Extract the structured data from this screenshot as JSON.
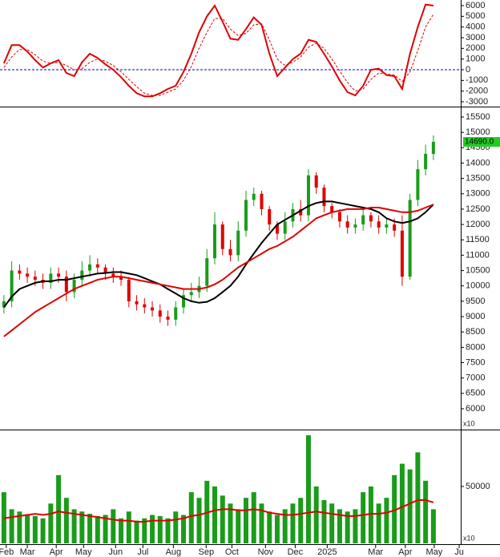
{
  "chart_data": [
    {
      "type": "line",
      "x": [
        0,
        1,
        2,
        3,
        4,
        5,
        6,
        7,
        8,
        9,
        10,
        11,
        12,
        13,
        14,
        15,
        16,
        17,
        18,
        19,
        20,
        21,
        22,
        23,
        24,
        25,
        26,
        27,
        28,
        29,
        30,
        31,
        32,
        33,
        34,
        35,
        36,
        37,
        38,
        39,
        40,
        41,
        42,
        43,
        44,
        45,
        46,
        47,
        48,
        49,
        50,
        51,
        52,
        53,
        54,
        55
      ],
      "xlim": [
        -0.5,
        58.5
      ],
      "ylim": [
        -3450,
        6525
      ],
      "yticks": [
        -3000,
        -2000,
        -1000,
        0,
        1000,
        2000,
        3000,
        4000,
        5000,
        6000
      ],
      "hline": 0,
      "hline_color": "#0000cc",
      "series": [
        {
          "color": "#e00000",
          "style": "solid",
          "values": [
            600,
            2300,
            2300,
            1700,
            900,
            200,
            600,
            900,
            -300,
            -600,
            700,
            1500,
            1100,
            500,
            0,
            -700,
            -1500,
            -2200,
            -2500,
            -2500,
            -2200,
            -1800,
            -1500,
            -200,
            1500,
            3500,
            5000,
            6000,
            4500,
            2900,
            2800,
            3800,
            4900,
            4200,
            1500,
            -600,
            200,
            1000,
            1500,
            2800,
            2600,
            1500,
            300,
            -1000,
            -2100,
            -2400,
            -1500,
            0,
            100,
            -500,
            -600,
            -1800,
            1500,
            4000,
            6100,
            6000
          ]
        },
        {
          "color": "#e00000",
          "style": "dashed",
          "values": [
            200,
            1200,
            1900,
            1900,
            1400,
            800,
            600,
            700,
            400,
            0,
            100,
            700,
            1000,
            800,
            400,
            -200,
            -900,
            -1600,
            -2200,
            -2400,
            -2400,
            -2100,
            -1800,
            -1000,
            300,
            2000,
            3500,
            4800,
            4800,
            3800,
            3200,
            3400,
            4200,
            4300,
            2800,
            1000,
            400,
            700,
            1200,
            2100,
            2500,
            2000,
            1000,
            -100,
            -1200,
            -2000,
            -1800,
            -900,
            -300,
            -400,
            -500,
            -1100,
            -200,
            1800,
            4000,
            5200
          ]
        }
      ]
    },
    {
      "type": "candlestick",
      "x": [
        0,
        1,
        2,
        3,
        4,
        5,
        6,
        7,
        8,
        9,
        10,
        11,
        12,
        13,
        14,
        15,
        16,
        17,
        18,
        19,
        20,
        21,
        22,
        23,
        24,
        25,
        26,
        27,
        28,
        29,
        30,
        31,
        32,
        33,
        34,
        35,
        36,
        37,
        38,
        39,
        40,
        41,
        42,
        43,
        44,
        45,
        46,
        47,
        48,
        49,
        50,
        51,
        52,
        53,
        54,
        55
      ],
      "xlim": [
        -0.5,
        58.5
      ],
      "ylim": [
        5347,
        15787
      ],
      "yticks": [
        6000,
        6500,
        7000,
        7500,
        8000,
        8500,
        9000,
        9500,
        10000,
        10500,
        11000,
        11500,
        12000,
        12500,
        13000,
        13500,
        14000,
        14500,
        15000,
        15500
      ],
      "up_color": "#1a9c1a",
      "down_color": "#e00000",
      "open": [
        9300,
        9500,
        10500,
        10400,
        10300,
        10200,
        10100,
        10400,
        10300,
        9800,
        10200,
        10500,
        10700,
        10600,
        10400,
        10300,
        10200,
        9500,
        9400,
        9300,
        9200,
        9000,
        8900,
        9300,
        9700,
        9800,
        10000,
        10900,
        12000,
        11200,
        11000,
        11800,
        12800,
        13000,
        12500,
        12000,
        11700,
        12100,
        12500,
        12300,
        13600,
        13200,
        12600,
        12400,
        12100,
        11900,
        12000,
        12300,
        12100,
        11900,
        12000,
        11800,
        10300,
        12800,
        13800,
        14300
      ],
      "high": [
        9700,
        10800,
        10700,
        10600,
        10500,
        10400,
        10600,
        10600,
        10500,
        10400,
        10800,
        11000,
        10900,
        10700,
        10600,
        10500,
        10300,
        9700,
        9600,
        9500,
        9400,
        9200,
        9500,
        9900,
        10100,
        10300,
        11200,
        12400,
        12100,
        11500,
        12100,
        13100,
        13200,
        13100,
        12600,
        12100,
        12400,
        12700,
        12800,
        13800,
        13700,
        13300,
        12700,
        12500,
        12300,
        12200,
        12500,
        12400,
        12300,
        12200,
        12200,
        12300,
        13000,
        14100,
        14600,
        14900
      ],
      "low": [
        9100,
        9300,
        10200,
        10100,
        10000,
        9900,
        9900,
        10100,
        9500,
        9600,
        10000,
        10300,
        10400,
        10200,
        10100,
        10000,
        9300,
        9200,
        9100,
        9000,
        8800,
        8700,
        8700,
        9100,
        9500,
        9600,
        9800,
        10700,
        11000,
        10800,
        10800,
        11600,
        12600,
        12300,
        11800,
        11500,
        11500,
        11900,
        12100,
        12100,
        13000,
        12400,
        12200,
        11900,
        11700,
        11700,
        11800,
        11900,
        11700,
        11700,
        11600,
        10000,
        10200,
        12600,
        13600,
        14100
      ],
      "close": [
        9500,
        10500,
        10400,
        10300,
        10200,
        10100,
        10400,
        10300,
        9800,
        10200,
        10500,
        10700,
        10600,
        10400,
        10300,
        10200,
        9500,
        9400,
        9300,
        9200,
        9000,
        8900,
        9300,
        9700,
        9800,
        10000,
        10900,
        12000,
        11200,
        11000,
        11800,
        12800,
        13000,
        12500,
        12000,
        11700,
        12100,
        12500,
        12300,
        13600,
        13200,
        12600,
        12400,
        12100,
        11900,
        12000,
        12300,
        12100,
        11900,
        12000,
        11800,
        10300,
        12800,
        13800,
        14300,
        14690
      ],
      "series": [
        {
          "color": "#000000",
          "style": "solid",
          "values": [
            9300,
            9650,
            9900,
            10000,
            10100,
            10150,
            10150,
            10200,
            10200,
            10250,
            10300,
            10350,
            10400,
            10420,
            10450,
            10450,
            10400,
            10350,
            10250,
            10150,
            10050,
            9900,
            9750,
            9600,
            9500,
            9450,
            9480,
            9600,
            9800,
            10000,
            10300,
            10700,
            11050,
            11400,
            11700,
            12000,
            12150,
            12300,
            12450,
            12600,
            12700,
            12750,
            12750,
            12700,
            12650,
            12600,
            12550,
            12500,
            12400,
            12200,
            12100,
            12050,
            12100,
            12200,
            12400,
            12650
          ]
        },
        {
          "color": "#e00000",
          "style": "solid",
          "values": [
            8350,
            8550,
            8750,
            8950,
            9150,
            9300,
            9450,
            9600,
            9750,
            9900,
            10000,
            10100,
            10200,
            10250,
            10300,
            10300,
            10250,
            10200,
            10150,
            10100,
            10050,
            10000,
            9950,
            9900,
            9900,
            9900,
            9950,
            10050,
            10200,
            10400,
            10600,
            10750,
            10900,
            11050,
            11200,
            11300,
            11450,
            11600,
            11800,
            12000,
            12200,
            12300,
            12400,
            12450,
            12500,
            12500,
            12500,
            12550,
            12550,
            12500,
            12450,
            12400,
            12400,
            12450,
            12550,
            12650
          ]
        }
      ],
      "last_price": {
        "value": 14690,
        "label": "14690.0"
      },
      "last_price_color": "#22cc22",
      "annotation": "x10"
    },
    {
      "type": "bar",
      "x": [
        0,
        1,
        2,
        3,
        4,
        5,
        6,
        7,
        8,
        9,
        10,
        11,
        12,
        13,
        14,
        15,
        16,
        17,
        18,
        19,
        20,
        21,
        22,
        23,
        24,
        25,
        26,
        27,
        28,
        29,
        30,
        31,
        32,
        33,
        34,
        35,
        36,
        37,
        38,
        39,
        40,
        41,
        42,
        43,
        44,
        45,
        46,
        47,
        48,
        49,
        50,
        51,
        52,
        53,
        54,
        55
      ],
      "xlim": [
        -0.5,
        58.5
      ],
      "ylim": [
        0,
        98600
      ],
      "yticks": [
        50000
      ],
      "color": "#1a9c1a",
      "values": [
        45000,
        30000,
        28000,
        25000,
        24000,
        22000,
        35000,
        60000,
        40000,
        30000,
        28000,
        26000,
        24000,
        25000,
        30000,
        22000,
        28000,
        20000,
        22000,
        25000,
        24000,
        22000,
        28000,
        25000,
        45000,
        40000,
        55000,
        50000,
        42000,
        35000,
        30000,
        40000,
        45000,
        35000,
        28000,
        25000,
        30000,
        35000,
        40000,
        95000,
        50000,
        38000,
        35000,
        30000,
        28000,
        30000,
        45000,
        50000,
        35000,
        40000,
        60000,
        70000,
        65000,
        80000,
        55000,
        30000
      ],
      "series": [
        {
          "color": "#e00000",
          "style": "solid",
          "values": [
            22000,
            23000,
            24000,
            25000,
            26000,
            25000,
            26000,
            28000,
            27000,
            26000,
            25000,
            24000,
            23000,
            22000,
            21000,
            20000,
            20000,
            19000,
            19000,
            20000,
            20000,
            20000,
            21000,
            22000,
            24000,
            25000,
            27000,
            29000,
            30000,
            30000,
            29000,
            29000,
            30000,
            29000,
            27000,
            26000,
            25000,
            25000,
            26000,
            27000,
            28000,
            27000,
            26000,
            25000,
            24000,
            24000,
            25000,
            26000,
            26000,
            27000,
            29000,
            32000,
            35000,
            38000,
            38000,
            36000
          ]
        }
      ],
      "xticks": [
        {
          "value": 0.3,
          "label": "Feb"
        },
        {
          "value": 3,
          "label": "Mar"
        },
        {
          "value": 6.7,
          "label": "Apr"
        },
        {
          "value": 10.2,
          "label": "May"
        },
        {
          "value": 14.3,
          "label": "Jun"
        },
        {
          "value": 17.8,
          "label": "Jul"
        },
        {
          "value": 21.7,
          "label": "Aug"
        },
        {
          "value": 25.9,
          "label": "Sep"
        },
        {
          "value": 29.2,
          "label": "Oct"
        },
        {
          "value": 33.5,
          "label": "Nov"
        },
        {
          "value": 37.3,
          "label": "Dec"
        },
        {
          "value": 41.4,
          "label": "2025"
        },
        {
          "value": 47.6,
          "label": "Mar"
        },
        {
          "value": 51.4,
          "label": "Apr"
        },
        {
          "value": 55.1,
          "label": "May"
        },
        {
          "value": 58.3,
          "label": "Ju"
        }
      ],
      "annotation": "x10"
    }
  ]
}
